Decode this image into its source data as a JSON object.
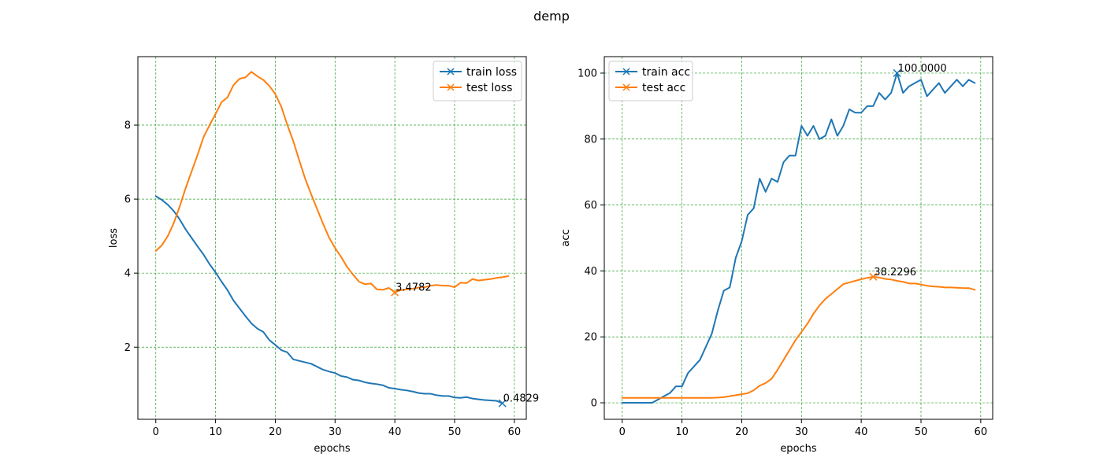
{
  "figure": {
    "suptitle": "demp"
  },
  "colors": {
    "train": "#1f77b4",
    "test": "#ff7f0e",
    "grid": "#2ca02c"
  },
  "chart_data": [
    {
      "id": "loss",
      "type": "line",
      "title": "",
      "xlabel": "epochs",
      "ylabel": "loss",
      "xlim": [
        -3,
        62
      ],
      "ylim": [
        0.05,
        9.85
      ],
      "xticks": [
        0,
        10,
        20,
        30,
        40,
        50,
        60
      ],
      "yticks": [
        2,
        4,
        6,
        8
      ],
      "grid": true,
      "legend_location": "upper right",
      "series": [
        {
          "name": "train loss",
          "color": "#1f77b4",
          "marker": "x",
          "x": [
            0,
            1,
            2,
            3,
            4,
            5,
            6,
            7,
            8,
            9,
            10,
            11,
            12,
            13,
            14,
            15,
            16,
            17,
            18,
            19,
            20,
            21,
            22,
            23,
            24,
            25,
            26,
            27,
            28,
            29,
            30,
            31,
            32,
            33,
            34,
            35,
            36,
            37,
            38,
            39,
            40,
            41,
            42,
            43,
            44,
            45,
            46,
            47,
            48,
            49,
            50,
            51,
            52,
            53,
            54,
            55,
            56,
            57,
            58
          ],
          "values": [
            6.08,
            5.98,
            5.85,
            5.68,
            5.45,
            5.18,
            4.95,
            4.72,
            4.5,
            4.24,
            4.02,
            3.77,
            3.54,
            3.26,
            3.05,
            2.84,
            2.64,
            2.5,
            2.41,
            2.19,
            2.06,
            1.92,
            1.86,
            1.67,
            1.63,
            1.59,
            1.55,
            1.47,
            1.39,
            1.34,
            1.3,
            1.22,
            1.19,
            1.12,
            1.1,
            1.05,
            1.02,
            1.0,
            0.97,
            0.9,
            0.88,
            0.85,
            0.83,
            0.8,
            0.76,
            0.74,
            0.74,
            0.7,
            0.68,
            0.68,
            0.64,
            0.63,
            0.65,
            0.61,
            0.59,
            0.57,
            0.56,
            0.55,
            0.4829
          ],
          "annotation": {
            "x": 58,
            "y": 0.4829,
            "text": "0.4829"
          }
        },
        {
          "name": "test loss",
          "color": "#ff7f0e",
          "marker": "x",
          "x": [
            0,
            1,
            2,
            3,
            4,
            5,
            6,
            7,
            8,
            9,
            10,
            11,
            12,
            13,
            14,
            15,
            16,
            17,
            18,
            19,
            20,
            21,
            22,
            23,
            24,
            25,
            26,
            27,
            28,
            29,
            30,
            31,
            32,
            33,
            34,
            35,
            36,
            37,
            38,
            39,
            40,
            41,
            42,
            43,
            44,
            45,
            46,
            47,
            48,
            49,
            50,
            51,
            52,
            53,
            54,
            55,
            56,
            57,
            58,
            59
          ],
          "values": [
            4.6,
            4.75,
            5.0,
            5.35,
            5.8,
            6.3,
            6.75,
            7.2,
            7.68,
            8.0,
            8.3,
            8.62,
            8.75,
            9.08,
            9.25,
            9.29,
            9.44,
            9.32,
            9.22,
            9.06,
            8.84,
            8.5,
            8.01,
            7.57,
            7.05,
            6.55,
            6.13,
            5.73,
            5.33,
            4.96,
            4.68,
            4.44,
            4.17,
            3.96,
            3.77,
            3.7,
            3.72,
            3.56,
            3.55,
            3.6,
            3.4782,
            3.54,
            3.56,
            3.58,
            3.61,
            3.62,
            3.66,
            3.68,
            3.66,
            3.66,
            3.62,
            3.74,
            3.73,
            3.84,
            3.8,
            3.82,
            3.84,
            3.87,
            3.89,
            3.92
          ],
          "annotation": {
            "x": 40,
            "y": 3.4782,
            "text": "3.4782"
          }
        }
      ]
    },
    {
      "id": "acc",
      "type": "line",
      "title": "",
      "xlabel": "epochs",
      "ylabel": "acc",
      "xlim": [
        -3,
        62
      ],
      "ylim": [
        -5,
        105
      ],
      "xticks": [
        0,
        10,
        20,
        30,
        40,
        50,
        60
      ],
      "yticks": [
        0,
        20,
        40,
        60,
        80,
        100
      ],
      "grid": true,
      "legend_location": "upper left",
      "series": [
        {
          "name": "train acc",
          "color": "#1f77b4",
          "marker": "x",
          "x": [
            0,
            1,
            2,
            3,
            4,
            5,
            6,
            7,
            8,
            9,
            10,
            11,
            12,
            13,
            14,
            15,
            16,
            17,
            18,
            19,
            20,
            21,
            22,
            23,
            24,
            25,
            26,
            27,
            28,
            29,
            30,
            31,
            32,
            33,
            34,
            35,
            36,
            37,
            38,
            39,
            40,
            41,
            42,
            43,
            44,
            45,
            46,
            47,
            48,
            49,
            50,
            51,
            52,
            53,
            54,
            55,
            56,
            57,
            58,
            59
          ],
          "values": [
            0,
            0,
            0,
            0,
            0,
            0,
            1,
            2,
            3,
            5,
            5,
            9,
            11,
            13,
            17,
            21,
            28,
            34,
            35,
            44,
            49,
            57,
            59,
            68,
            64,
            68,
            67,
            73,
            75,
            75,
            84,
            81,
            84,
            80,
            81,
            86,
            81,
            84,
            89,
            88,
            88,
            90,
            90,
            94,
            92,
            94,
            100.0,
            94,
            96,
            97,
            98,
            93,
            95,
            97,
            94,
            96,
            98,
            96,
            98,
            97
          ],
          "annotation": {
            "x": 46,
            "y": 100.0,
            "text": "100.0000"
          }
        },
        {
          "name": "test acc",
          "color": "#ff7f0e",
          "marker": "x",
          "x": [
            0,
            1,
            2,
            3,
            4,
            5,
            6,
            7,
            8,
            9,
            10,
            11,
            12,
            13,
            14,
            15,
            16,
            17,
            18,
            19,
            20,
            21,
            22,
            23,
            24,
            25,
            26,
            27,
            28,
            29,
            30,
            31,
            32,
            33,
            34,
            35,
            36,
            37,
            38,
            39,
            40,
            41,
            42,
            43,
            44,
            45,
            46,
            47,
            48,
            49,
            50,
            51,
            52,
            53,
            54,
            55,
            56,
            57,
            58,
            59
          ],
          "values": [
            1.5,
            1.5,
            1.5,
            1.5,
            1.5,
            1.5,
            1.5,
            1.5,
            1.5,
            1.5,
            1.5,
            1.5,
            1.5,
            1.5,
            1.5,
            1.5,
            1.6,
            1.7,
            2.0,
            2.3,
            2.6,
            2.9,
            3.8,
            5.2,
            6.0,
            7.3,
            10.0,
            13.0,
            16.0,
            19.0,
            21.5,
            24.0,
            27.0,
            29.5,
            31.5,
            33.0,
            34.5,
            36.0,
            36.5,
            37.0,
            37.5,
            37.9,
            38.2296,
            38.0,
            37.6,
            37.4,
            37.0,
            36.7,
            36.2,
            36.2,
            35.9,
            35.5,
            35.3,
            35.2,
            35.0,
            35.0,
            34.9,
            34.8,
            34.8,
            34.3
          ],
          "annotation": {
            "x": 42,
            "y": 38.2296,
            "text": "38.2296"
          }
        }
      ]
    }
  ]
}
